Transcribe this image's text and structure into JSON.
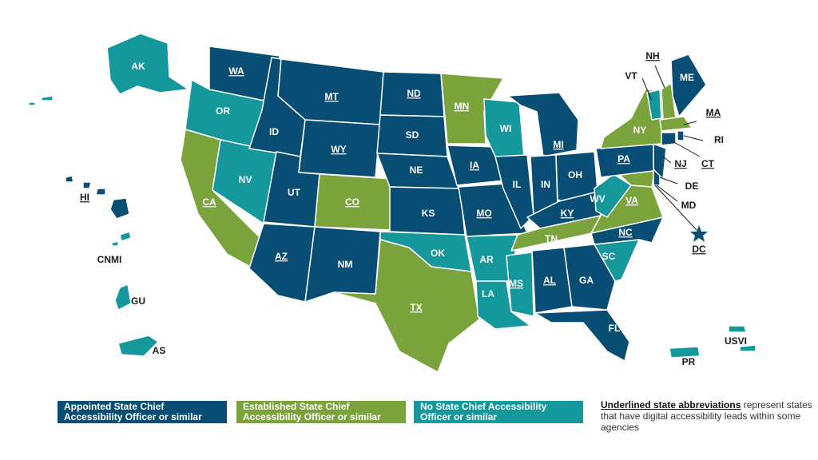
{
  "colors": {
    "appointed": "#074d74",
    "established": "#7aa33b",
    "none": "#14989c",
    "text_dark": "#1a1a1a",
    "text_light": "#ffffff"
  },
  "states": {
    "WA": {
      "label": "WA",
      "status": "appointed",
      "underlined": true
    },
    "OR": {
      "label": "OR",
      "status": "none",
      "underlined": false
    },
    "CA": {
      "label": "CA",
      "status": "established",
      "underlined": true
    },
    "NV": {
      "label": "NV",
      "status": "none",
      "underlined": false
    },
    "ID": {
      "label": "ID",
      "status": "appointed",
      "underlined": false
    },
    "MT": {
      "label": "MT",
      "status": "appointed",
      "underlined": true
    },
    "WY": {
      "label": "WY",
      "status": "appointed",
      "underlined": true
    },
    "UT": {
      "label": "UT",
      "status": "appointed",
      "underlined": false
    },
    "AZ": {
      "label": "AZ",
      "status": "appointed",
      "underlined": true
    },
    "CO": {
      "label": "CO",
      "status": "established",
      "underlined": true
    },
    "NM": {
      "label": "NM",
      "status": "appointed",
      "underlined": false
    },
    "ND": {
      "label": "ND",
      "status": "appointed",
      "underlined": true
    },
    "SD": {
      "label": "SD",
      "status": "appointed",
      "underlined": false
    },
    "NE": {
      "label": "NE",
      "status": "appointed",
      "underlined": false
    },
    "KS": {
      "label": "KS",
      "status": "appointed",
      "underlined": false
    },
    "OK": {
      "label": "OK",
      "status": "none",
      "underlined": false
    },
    "TX": {
      "label": "TX",
      "status": "established",
      "underlined": true
    },
    "MN": {
      "label": "MN",
      "status": "established",
      "underlined": true
    },
    "IA": {
      "label": "IA",
      "status": "appointed",
      "underlined": true
    },
    "MO": {
      "label": "MO",
      "status": "appointed",
      "underlined": true
    },
    "AR": {
      "label": "AR",
      "status": "none",
      "underlined": false
    },
    "LA": {
      "label": "LA",
      "status": "none",
      "underlined": false
    },
    "WI": {
      "label": "WI",
      "status": "none",
      "underlined": false
    },
    "IL": {
      "label": "IL",
      "status": "appointed",
      "underlined": false
    },
    "MI": {
      "label": "MI",
      "status": "appointed",
      "underlined": true
    },
    "IN": {
      "label": "IN",
      "status": "appointed",
      "underlined": false
    },
    "OH": {
      "label": "OH",
      "status": "appointed",
      "underlined": false
    },
    "KY": {
      "label": "KY",
      "status": "appointed",
      "underlined": true
    },
    "TN": {
      "label": "TN",
      "status": "established",
      "underlined": true
    },
    "MS": {
      "label": "MS",
      "status": "none",
      "underlined": true
    },
    "AL": {
      "label": "AL",
      "status": "appointed",
      "underlined": true
    },
    "GA": {
      "label": "GA",
      "status": "appointed",
      "underlined": false
    },
    "FL": {
      "label": "FL",
      "status": "appointed",
      "underlined": false
    },
    "SC": {
      "label": "SC",
      "status": "none",
      "underlined": false
    },
    "NC": {
      "label": "NC",
      "status": "appointed",
      "underlined": true
    },
    "VA": {
      "label": "VA",
      "status": "established",
      "underlined": true
    },
    "WV": {
      "label": "WV",
      "status": "none",
      "underlined": false
    },
    "PA": {
      "label": "PA",
      "status": "appointed",
      "underlined": true
    },
    "NY": {
      "label": "NY",
      "status": "established",
      "underlined": false
    },
    "VT": {
      "label": "VT",
      "status": "none",
      "underlined": false
    },
    "NH": {
      "label": "NH",
      "status": "established",
      "underlined": true
    },
    "ME": {
      "label": "ME",
      "status": "appointed",
      "underlined": false
    },
    "MA": {
      "label": "MA",
      "status": "established",
      "underlined": true
    },
    "RI": {
      "label": "RI",
      "status": "appointed",
      "underlined": false
    },
    "CT": {
      "label": "CT",
      "status": "appointed",
      "underlined": true
    },
    "NJ": {
      "label": "NJ",
      "status": "appointed",
      "underlined": true
    },
    "DE": {
      "label": "DE",
      "status": "appointed",
      "underlined": false
    },
    "MD": {
      "label": "MD",
      "status": "established",
      "underlined": false
    },
    "DC": {
      "label": "DC",
      "status": "appointed",
      "underlined": true
    },
    "AK": {
      "label": "AK",
      "status": "none",
      "underlined": false
    },
    "HI": {
      "label": "HI",
      "status": "appointed",
      "underlined": true
    },
    "CNMI": {
      "label": "CNMI",
      "status": "none",
      "underlined": false
    },
    "GU": {
      "label": "GU",
      "status": "none",
      "underlined": false
    },
    "AS": {
      "label": "AS",
      "status": "none",
      "underlined": false
    },
    "PR": {
      "label": "PR",
      "status": "none",
      "underlined": false
    },
    "USVI": {
      "label": "USVI",
      "status": "none",
      "underlined": false
    }
  },
  "legend": {
    "appointed": "Appointed State Chief Accessibility Officer or similar",
    "appointed_line1": "Appointed State Chief",
    "appointed_line2": "Accessibility Officer or similar",
    "established_line1": "Established State Chief",
    "established_line2": "Accessibility Officer or similar",
    "none_line1": "No State Chief Accessibility",
    "none_line2": "Officer or similar",
    "note_bold": "Underlined state abbreviations",
    "note_rest": " represent states that have digital accessibility leads within some agencies"
  }
}
